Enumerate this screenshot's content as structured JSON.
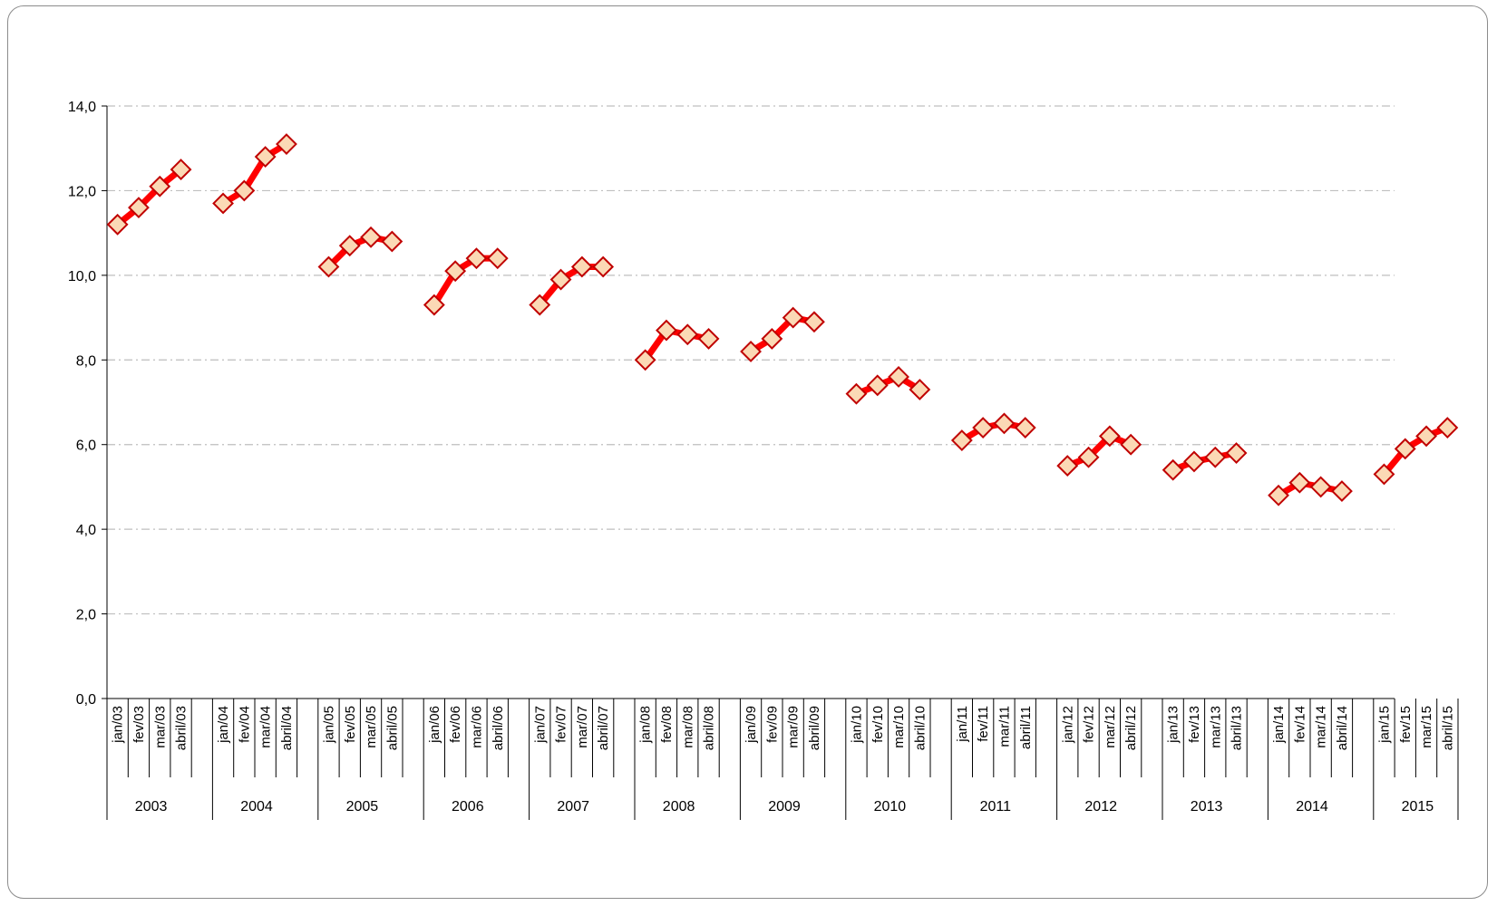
{
  "chart_data": {
    "type": "line",
    "title": "",
    "xlabel": "",
    "ylabel": "",
    "ylim": [
      0,
      14
    ],
    "yticks": [
      "0,0",
      "2,0",
      "4,0",
      "6,0",
      "8,0",
      "10,0",
      "12,0",
      "14,0"
    ],
    "grid": true,
    "legend": "none",
    "colors": {
      "line": "#ff0000",
      "marker_fill": "#fbd9b5",
      "marker_edge": "#c00000",
      "grid": "#bfbfbf",
      "axis": "#000000"
    },
    "groups": [
      {
        "year": "2003",
        "labels": [
          "jan/03",
          "fev/03",
          "mar/03",
          "abril/03"
        ],
        "values": [
          11.2,
          11.6,
          12.1,
          12.5
        ]
      },
      {
        "year": "2004",
        "labels": [
          "jan/04",
          "fev/04",
          "mar/04",
          "abril/04"
        ],
        "values": [
          11.7,
          12.0,
          12.8,
          13.1
        ]
      },
      {
        "year": "2005",
        "labels": [
          "jan/05",
          "fev/05",
          "mar/05",
          "abril/05"
        ],
        "values": [
          10.2,
          10.7,
          10.9,
          10.8
        ]
      },
      {
        "year": "2006",
        "labels": [
          "jan/06",
          "fev/06",
          "mar/06",
          "abril/06"
        ],
        "values": [
          9.3,
          10.1,
          10.4,
          10.4
        ]
      },
      {
        "year": "2007",
        "labels": [
          "jan/07",
          "fev/07",
          "mar/07",
          "abril/07"
        ],
        "values": [
          9.3,
          9.9,
          10.2,
          10.2
        ]
      },
      {
        "year": "2008",
        "labels": [
          "jan/08",
          "fev/08",
          "mar/08",
          "abril/08"
        ],
        "values": [
          8.0,
          8.7,
          8.6,
          8.5
        ]
      },
      {
        "year": "2009",
        "labels": [
          "jan/09",
          "fev/09",
          "mar/09",
          "abril/09"
        ],
        "values": [
          8.2,
          8.5,
          9.0,
          8.9
        ]
      },
      {
        "year": "2010",
        "labels": [
          "jan/10",
          "fev/10",
          "mar/10",
          "abril/10"
        ],
        "values": [
          7.2,
          7.4,
          7.6,
          7.3
        ]
      },
      {
        "year": "2011",
        "labels": [
          "jan/11",
          "fev/11",
          "mar/11",
          "abril/11"
        ],
        "values": [
          6.1,
          6.4,
          6.5,
          6.4
        ]
      },
      {
        "year": "2012",
        "labels": [
          "jan/12",
          "fev/12",
          "mar/12",
          "abril/12"
        ],
        "values": [
          5.5,
          5.7,
          6.2,
          6.0
        ]
      },
      {
        "year": "2013",
        "labels": [
          "jan/13",
          "fev/13",
          "mar/13",
          "abril/13"
        ],
        "values": [
          5.4,
          5.6,
          5.7,
          5.8
        ]
      },
      {
        "year": "2014",
        "labels": [
          "jan/14",
          "fev/14",
          "mar/14",
          "abril/14"
        ],
        "values": [
          4.8,
          5.1,
          5.0,
          4.9
        ]
      },
      {
        "year": "2015",
        "labels": [
          "jan/15",
          "fev/15",
          "mar/15",
          "abril/15"
        ],
        "values": [
          5.3,
          5.9,
          6.2,
          6.4
        ]
      }
    ]
  }
}
